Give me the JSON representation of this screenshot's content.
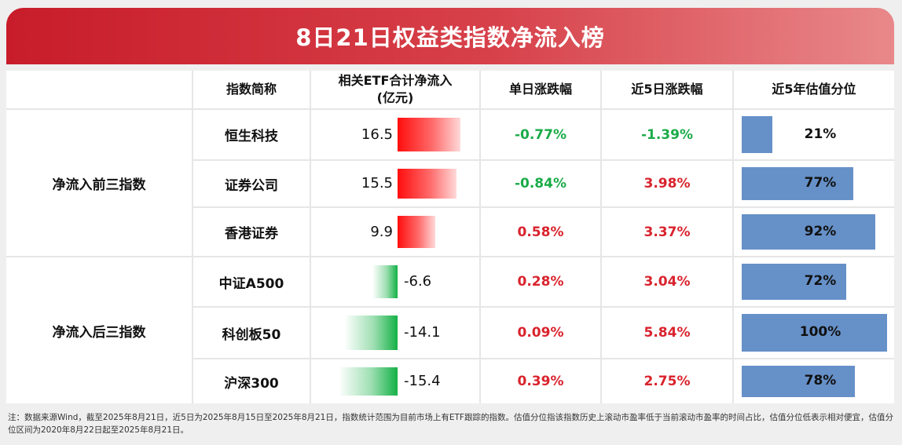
{
  "title": "8日21日权益类指数净流入榜",
  "table": {
    "headers": [
      "指数简称",
      "相关ETF合计净流入\n(亿元)",
      "单日涨跌幅",
      "近5日涨跌幅",
      "近5年估值分位"
    ],
    "groups": [
      "净流入前三指数",
      "净流入后三指数"
    ],
    "rows": [
      {
        "name": "恒生科技",
        "inflow_label": "16.5",
        "daily": "-0.77%",
        "five_day": "-1.39%",
        "valuation": "21%"
      },
      {
        "name": "证券公司",
        "inflow_label": "15.5",
        "daily": "-0.84%",
        "five_day": "3.98%",
        "valuation": "77%"
      },
      {
        "name": "香港证券",
        "inflow_label": "9.9",
        "daily": "0.58%",
        "five_day": "3.37%",
        "valuation": "92%"
      },
      {
        "name": "中证A500",
        "inflow_label": "-6.6",
        "daily": "0.28%",
        "five_day": "3.04%",
        "valuation": "72%"
      },
      {
        "name": "科创板50",
        "inflow_label": "-14.1",
        "daily": "0.09%",
        "five_day": "5.84%",
        "valuation": "100%"
      },
      {
        "name": "沪深300",
        "inflow_label": "-15.4",
        "daily": "0.39%",
        "five_day": "2.75%",
        "valuation": "78%"
      }
    ]
  },
  "colors": {
    "positive": "#d9232d",
    "negative": "#1aab48",
    "valuation_bar": "#6690c8",
    "title_bg": "#c81c2a"
  },
  "chart_data": {
    "type": "table",
    "categories": [
      "恒生科技",
      "证券公司",
      "香港证券",
      "中证A500",
      "科创板50",
      "沪深300"
    ],
    "series": [
      {
        "name": "相关ETF合计净流入(亿元)",
        "values": [
          16.5,
          15.5,
          9.9,
          -6.6,
          -14.1,
          -15.4
        ]
      },
      {
        "name": "单日涨跌幅",
        "values": [
          -0.77,
          -0.84,
          0.58,
          0.28,
          0.09,
          0.39
        ]
      },
      {
        "name": "近5日涨跌幅",
        "values": [
          -1.39,
          3.98,
          3.37,
          3.04,
          5.84,
          2.75
        ]
      },
      {
        "name": "近5年估值分位",
        "values": [
          21,
          77,
          92,
          72,
          100,
          78
        ]
      }
    ]
  },
  "footnote": "注：数据来源Wind，截至2025年8月21日，近5日为2025年8月15日至2025年8月21日，指数统计范围为目前市场上有ETF跟踪的指数。估值分位指该指数历史上滚动市盈率低于当前滚动市盈率的时间占比，估值分位低表示相对便宜，估值分位区间为2020年8月22日起至2025年8月21日。"
}
